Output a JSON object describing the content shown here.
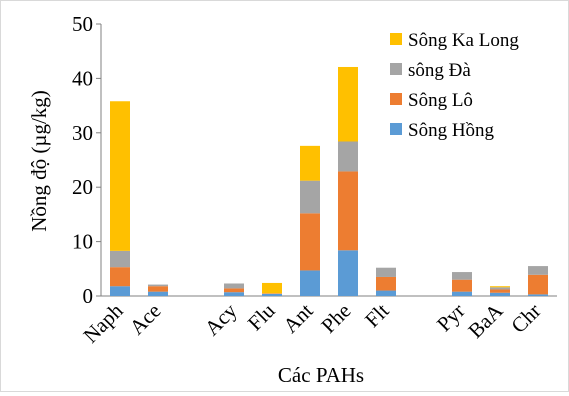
{
  "chart_data": {
    "type": "bar",
    "stacked": true,
    "title": "",
    "xlabel": "Các PAHs",
    "ylabel": "Nồng độ (µg/kg)",
    "ylim": [
      0,
      50
    ],
    "yticks": [
      "0",
      "10",
      "20",
      "30",
      "40",
      "50"
    ],
    "grid": false,
    "legend_position": "top-right",
    "slots": [
      "Naph",
      "Ace",
      "",
      "Acy",
      "Flu",
      "Ant",
      "Phe",
      "Flt",
      "",
      "Pyr",
      "BaA",
      "Chr"
    ],
    "categories": [
      "Naph",
      "Ace",
      "Acy",
      "Flu",
      "Ant",
      "Phe",
      "Flt",
      "Pyr",
      "BaA",
      "Chr"
    ],
    "series": [
      {
        "name": "Sông Hồng",
        "color": "#5B9BD5",
        "values": [
          1.8,
          0.8,
          0.7,
          0.4,
          4.7,
          8.4,
          1.0,
          0.8,
          0.6,
          0.3
        ]
      },
      {
        "name": "Sông Lô",
        "color": "#ED7D31",
        "values": [
          3.5,
          1.0,
          0.7,
          0.1,
          10.5,
          14.5,
          2.5,
          2.2,
          0.6,
          3.6
        ]
      },
      {
        "name": "sông Đà",
        "color": "#A5A5A5",
        "values": [
          3.0,
          0.3,
          0.9,
          0.0,
          6.0,
          5.5,
          1.7,
          1.4,
          0.4,
          1.6
        ]
      },
      {
        "name": "Sông Ka Long",
        "color": "#FFC000",
        "values": [
          27.5,
          0.0,
          0.0,
          1.9,
          6.4,
          13.7,
          0.0,
          0.0,
          0.2,
          0.0
        ]
      }
    ]
  }
}
